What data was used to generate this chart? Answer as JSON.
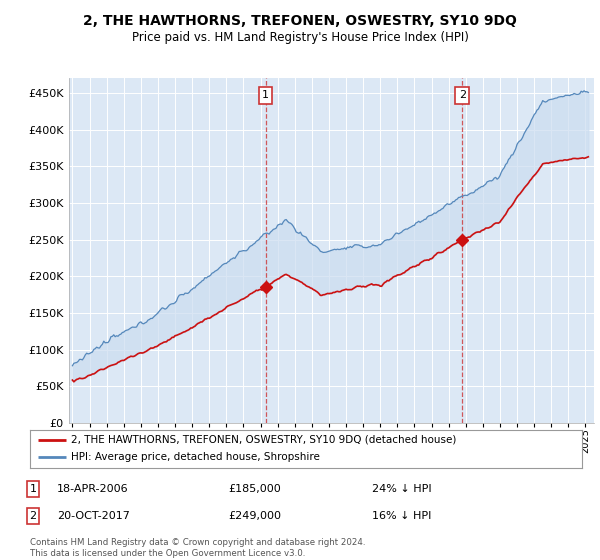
{
  "title": "2, THE HAWTHORNS, TREFONEN, OSWESTRY, SY10 9DQ",
  "subtitle": "Price paid vs. HM Land Registry's House Price Index (HPI)",
  "bg_color": "#dce8f5",
  "hpi_color": "#5588bb",
  "price_color": "#cc1111",
  "fill_color": "#ccddf0",
  "sale1_date": 2006.3,
  "sale1_price": 185000,
  "sale2_date": 2017.8,
  "sale2_price": 249000,
  "legend_line1": "2, THE HAWTHORNS, TREFONEN, OSWESTRY, SY10 9DQ (detached house)",
  "legend_line2": "HPI: Average price, detached house, Shropshire",
  "note1_date": "18-APR-2006",
  "note1_price": "£185,000",
  "note1_hpi": "24% ↓ HPI",
  "note2_date": "20-OCT-2017",
  "note2_price": "£249,000",
  "note2_hpi": "16% ↓ HPI",
  "footer": "Contains HM Land Registry data © Crown copyright and database right 2024.\nThis data is licensed under the Open Government Licence v3.0.",
  "ylim": [
    0,
    470000
  ],
  "xlim": [
    1994.8,
    2025.5
  ]
}
